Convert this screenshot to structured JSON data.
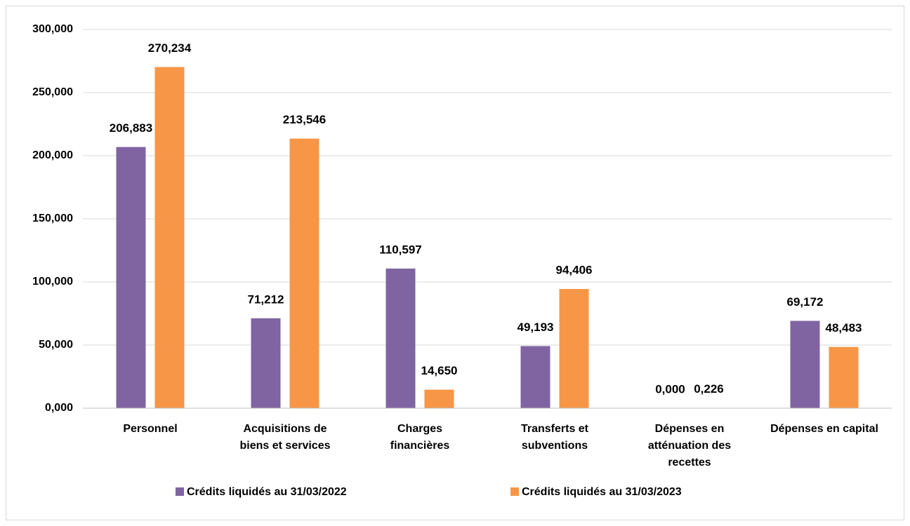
{
  "chart_data": {
    "type": "bar",
    "categories": [
      "Personnel",
      "Acquisitions de\nbiens et services",
      "Charges\nfinancières",
      "Transferts et\nsubventions",
      "Dépenses en\natténuation des\nrecettes",
      "Dépenses en capital"
    ],
    "series": [
      {
        "name": "Crédits liquidés au 31/03/2022",
        "color": "#8064a2",
        "values": [
          206.883,
          71.212,
          110.597,
          49.193,
          0.0,
          69.172
        ],
        "value_labels": [
          "206,883",
          "71,212",
          "110,597",
          "49,193",
          "0,000",
          "69,172"
        ]
      },
      {
        "name": "Crédits liquidés au 31/03/2023",
        "color": "#f79646",
        "values": [
          270.234,
          213.546,
          14.65,
          94.406,
          0.226,
          48.483
        ],
        "value_labels": [
          "270,234",
          "213,546",
          "14,650",
          "94,406",
          "0,226",
          "48,483"
        ]
      }
    ],
    "ylim": [
      0,
      300
    ],
    "yticks": [
      {
        "value": 0,
        "label": "0,000"
      },
      {
        "value": 50,
        "label": "50,000"
      },
      {
        "value": 100,
        "label": "100,000"
      },
      {
        "value": 150,
        "label": "150,000"
      },
      {
        "value": 200,
        "label": "200,000"
      },
      {
        "value": 250,
        "label": "250,000"
      },
      {
        "value": 300,
        "label": "300,000"
      }
    ],
    "grid": true,
    "legend": "bottom"
  }
}
